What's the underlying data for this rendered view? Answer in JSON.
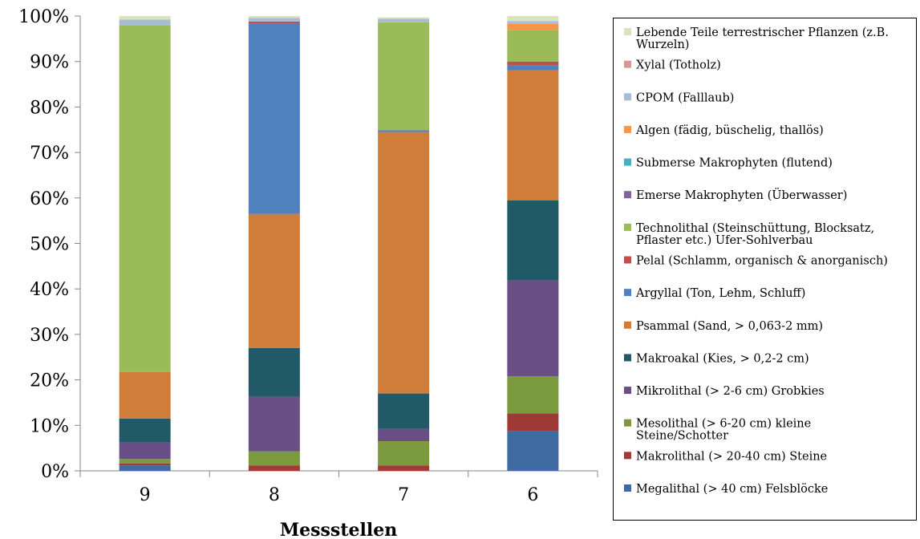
{
  "chart_data": {
    "type": "bar",
    "stacked": true,
    "normalized": true,
    "xlabel": "Messstellen",
    "ylabel": "",
    "ylim": [
      0,
      100
    ],
    "yticks": [
      "0%",
      "10%",
      "20%",
      "30%",
      "40%",
      "50%",
      "60%",
      "70%",
      "80%",
      "90%",
      "100%"
    ],
    "categories": [
      "9",
      "8",
      "7",
      "6"
    ],
    "legend_position": "right",
    "series": [
      {
        "name": "Megalithal (> 40 cm)  Felsblöcke",
        "color": "#3f6aa2",
        "values": [
          1.2,
          0,
          0,
          8.8
        ]
      },
      {
        "name": "Makrolithal (> 20-40 cm)  Steine",
        "color": "#9f3a37",
        "values": [
          0.4,
          1.2,
          1.2,
          3.8
        ]
      },
      {
        "name": "Mesolithal (> 6-20 cm) kleine Steine/Schotter",
        "color": "#7b9a3e",
        "values": [
          1.0,
          3.1,
          5.3,
          8.2
        ]
      },
      {
        "name": "Mikrolithal (> 2-6 cm) Grobkies",
        "color": "#6a4f87",
        "values": [
          3.6,
          12.0,
          2.7,
          21.1
        ]
      },
      {
        "name": "Makroakal (Kies, > 0,2-2 cm)",
        "color": "#215a66",
        "values": [
          5.3,
          10.7,
          7.8,
          17.6
        ]
      },
      {
        "name": "Psammal (Sand, > 0,063-2 mm)",
        "color": "#d07d3a",
        "values": [
          10.2,
          29.5,
          57.5,
          28.6
        ]
      },
      {
        "name": "Argyllal (Ton, Lehm, Schluff)",
        "color": "#4f81bd",
        "values": [
          0,
          41.9,
          0.4,
          1.0
        ]
      },
      {
        "name": "Pelal (Schlamm, organisch & anorganisch)",
        "color": "#c0504d",
        "values": [
          0,
          0.4,
          0,
          0.9
        ]
      },
      {
        "name": "Technolithal (Steinschüttung, Blocksatz, Pflaster etc.)    Ufer-Sohlverbau",
        "color": "#9bbb59",
        "values": [
          76.3,
          0,
          23.7,
          6.9
        ]
      },
      {
        "name": "Emerse Makrophyten (Überwasser)",
        "color": "#8064a2",
        "values": [
          0,
          0,
          0,
          0
        ]
      },
      {
        "name": "Submerse Makrophyten (flutend)",
        "color": "#4bacc6",
        "values": [
          0,
          0,
          0,
          0
        ]
      },
      {
        "name": "Algen (fädig, büschelig, thallös)",
        "color": "#f79646",
        "values": [
          0,
          0,
          0,
          1.4
        ]
      },
      {
        "name": "CPOM (Falllaub)",
        "color": "#a9bcd6",
        "values": [
          1.2,
          0.8,
          0.8,
          0.6
        ]
      },
      {
        "name": "Xylal (Totholz)",
        "color": "#d99694",
        "values": [
          0,
          0,
          0,
          0
        ]
      },
      {
        "name": "Lebende Teile terrestrischer Pflanzen (z.B. Wurzeln)",
        "color": "#d7e4bd",
        "values": [
          0.8,
          0.4,
          0.3,
          1.1
        ]
      }
    ]
  }
}
